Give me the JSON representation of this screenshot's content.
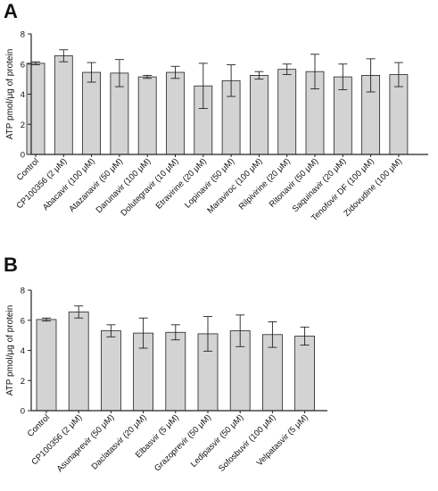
{
  "chart_data": [
    {
      "panel": "A",
      "type": "bar",
      "ylabel": "ATP pmol/μg of protein",
      "ylim": [
        0,
        8
      ],
      "yticks": [
        0,
        2,
        4,
        6,
        8
      ],
      "categories": [
        "Control",
        "CP100356 (2 μM)",
        "Abacavir (100 μM)",
        "Atazanavir (50 μM)",
        "Darunavir (100 μM)",
        "Dolutegravir (10 μM)",
        "Etravirine (20 μM)",
        "Lopinavir (50 μM)",
        "Maraviroc (100 μM)",
        "Rilpivirine (20 μM)",
        "Ritonavir (50 μM)",
        "Saquinavir (20 μM)",
        "Tenofovir DF (100 μM)",
        "Zidovudine (100 μM)"
      ],
      "values": [
        6.05,
        6.55,
        5.45,
        5.4,
        5.15,
        5.45,
        4.55,
        4.9,
        5.25,
        5.65,
        5.5,
        5.15,
        5.25,
        5.3
      ],
      "error": [
        0.1,
        0.4,
        0.65,
        0.9,
        0.1,
        0.4,
        1.5,
        1.05,
        0.25,
        0.35,
        1.15,
        0.85,
        1.1,
        0.8
      ],
      "bar_color": "#d3d3d3",
      "grid": false
    },
    {
      "panel": "B",
      "type": "bar",
      "ylabel": "ATP pmol/μg of protein",
      "ylim": [
        0,
        8
      ],
      "yticks": [
        0,
        2,
        4,
        6,
        8
      ],
      "categories": [
        "Control",
        "CP100356 (2 μM)",
        "Asunaprevir (50 μM)",
        "Daclatasvir (20 μM)",
        "Elbasvir (5 μM)",
        "Grazoprevir (50 μM)",
        "Ledipasvir (50 μM)",
        "Sofosbuvir (100 μM)",
        "Velpatasvir (5 μM)"
      ],
      "values": [
        6.05,
        6.55,
        5.3,
        5.15,
        5.2,
        5.1,
        5.3,
        5.05,
        4.95
      ],
      "error": [
        0.1,
        0.4,
        0.4,
        1.0,
        0.5,
        1.15,
        1.05,
        0.85,
        0.6
      ],
      "bar_color": "#d3d3d3",
      "grid": false
    }
  ]
}
